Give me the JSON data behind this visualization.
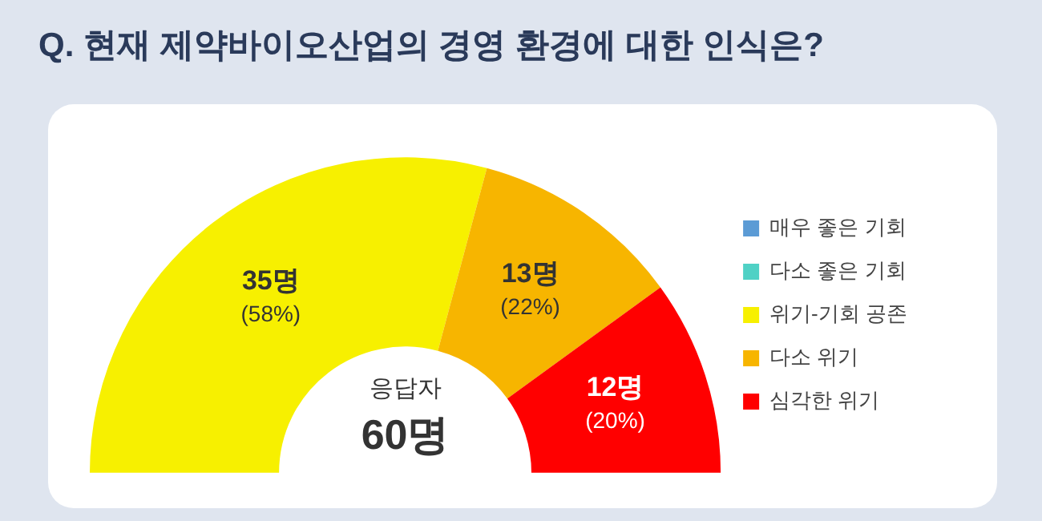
{
  "chart_data": {
    "type": "donut",
    "title": "Q. 현재 제약바이오산업의 경영 환경에 대한 인식은?",
    "categories": [
      "매우 좋은 기회",
      "다소 좋은 기회",
      "위기-기회 공존",
      "다소 위기",
      "심각한 위기"
    ],
    "values": [
      0,
      0,
      35,
      13,
      12
    ],
    "colors": [
      "#5b9bd5",
      "#4fd1c5",
      "#f7f000",
      "#f7b500",
      "#ff0000"
    ],
    "value_labels": [
      null,
      null,
      "35명 (58%)",
      "13명 (22%)",
      "12명 (20%)"
    ],
    "annotations": [
      "응답자",
      "60명"
    ],
    "legend": "right"
  }
}
